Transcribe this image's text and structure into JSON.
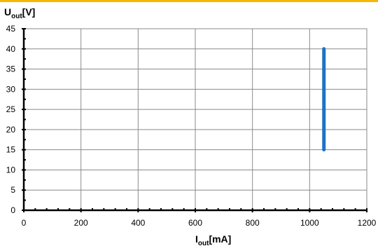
{
  "chart_data": {
    "type": "line",
    "title": "",
    "ylabel": {
      "main": "U",
      "sub": "out",
      "unit": "[V]"
    },
    "xlabel": {
      "main": "I",
      "sub": "out",
      "unit": "[mA]"
    },
    "xlim": [
      0,
      1200
    ],
    "ylim": [
      0,
      45
    ],
    "x_ticks": [
      0,
      200,
      400,
      600,
      800,
      1000,
      1200
    ],
    "y_ticks": [
      0,
      5,
      10,
      15,
      20,
      25,
      30,
      35,
      40,
      45
    ],
    "grid": true,
    "series": [
      {
        "x": [
          1050,
          1050
        ],
        "y": [
          15,
          40
        ],
        "color": "#1f72c4"
      }
    ],
    "colors": {
      "accent_rule": "#f5b700",
      "grid": "#8a8a8a",
      "axis": "#000000"
    }
  }
}
